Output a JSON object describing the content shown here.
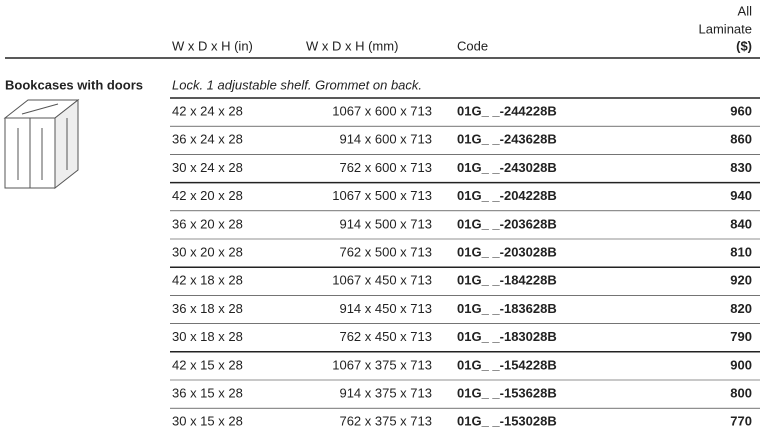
{
  "header": {
    "columns": [
      "W x D x H (in)",
      "W x D x H (mm)",
      "Code"
    ],
    "price_header": [
      "All",
      "Laminate",
      "($)"
    ]
  },
  "section": {
    "title": "Bookcases with doors",
    "note": "Lock. 1 adjustable shelf. Grommet on back."
  },
  "table": {
    "rows": [
      [
        "42 x 24 x 28",
        "1067 x 600 x 713",
        "01G_ _-244228B",
        "960"
      ],
      [
        "36 x 24 x 28",
        "914 x 600 x 713",
        "01G_ _-243628B",
        "860"
      ],
      [
        "30 x 24 x 28",
        "762 x 600 x 713",
        "01G_ _-243028B",
        "830"
      ],
      [
        "42 x 20 x 28",
        "1067 x 500 x 713",
        "01G_ _-204228B",
        "940"
      ],
      [
        "36 x 20 x 28",
        "914 x 500 x 713",
        "01G_ _-203628B",
        "840"
      ],
      [
        "30 x 20 x 28",
        "762 x 500 x 713",
        "01G_ _-203028B",
        "810"
      ],
      [
        "42 x 18 x 28",
        "1067 x 450 x 713",
        "01G_ _-184228B",
        "920"
      ],
      [
        "36 x 18 x 28",
        "914 x 450 x 713",
        "01G_ _-183628B",
        "820"
      ],
      [
        "30 x 18 x 28",
        "762 x 450 x 713",
        "01G_ _-183028B",
        "790"
      ],
      [
        "42 x 15 x 28",
        "1067 x 375 x 713",
        "01G_ _-154228B",
        "900"
      ],
      [
        "36 x 15 x 28",
        "914 x 375 x 713",
        "01G_ _-153628B",
        "800"
      ],
      [
        "30 x 15 x 28",
        "762 x 375 x 713",
        "01G_ _-153028B",
        "770"
      ]
    ]
  }
}
